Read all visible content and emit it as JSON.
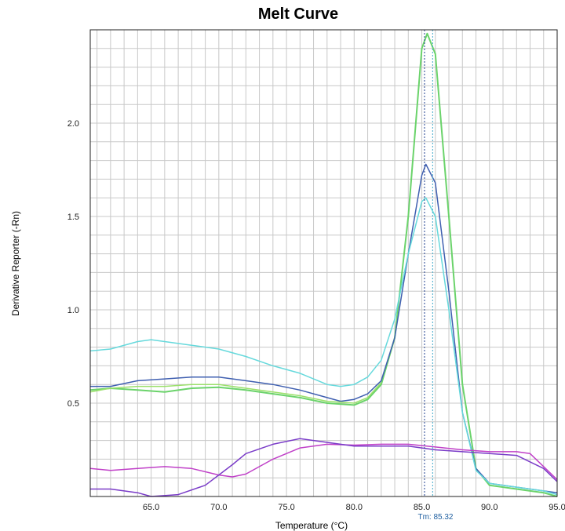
{
  "chart_data": {
    "type": "line",
    "title": "Melt Curve",
    "xlabel": "Temperature (°C)",
    "ylabel": "Derivative Reporter (-Rn)",
    "xlim": [
      60.5,
      95.0
    ],
    "ylim": [
      0.0,
      2.5
    ],
    "x_ticks": [
      "65.0",
      "70.0",
      "75.0",
      "80.0",
      "85.0",
      "90.0",
      "95.0"
    ],
    "y_ticks": [
      "0.5",
      "1.0",
      "1.5",
      "2.0"
    ],
    "grid": true,
    "tm_marker": {
      "label": "Tm: 85.32",
      "x": 85.2,
      "x2": 85.8
    },
    "series": [
      {
        "color": "#6bd36b",
        "points": [
          [
            60.5,
            0.57
          ],
          [
            62,
            0.58
          ],
          [
            64,
            0.57
          ],
          [
            66,
            0.56
          ],
          [
            68,
            0.58
          ],
          [
            70,
            0.585
          ],
          [
            72,
            0.57
          ],
          [
            74,
            0.55
          ],
          [
            76,
            0.53
          ],
          [
            78,
            0.5
          ],
          [
            80,
            0.49
          ],
          [
            81,
            0.52
          ],
          [
            82,
            0.6
          ],
          [
            83,
            0.85
          ],
          [
            84,
            1.5
          ],
          [
            85,
            2.4
          ],
          [
            85.4,
            2.48
          ],
          [
            86,
            2.37
          ],
          [
            87,
            1.5
          ],
          [
            88,
            0.6
          ],
          [
            89,
            0.15
          ],
          [
            90,
            0.06
          ],
          [
            92,
            0.04
          ],
          [
            94,
            0.02
          ],
          [
            95,
            0.0
          ]
        ]
      },
      {
        "color": "#3f5fb0",
        "points": [
          [
            60.5,
            0.59
          ],
          [
            62,
            0.59
          ],
          [
            64,
            0.62
          ],
          [
            66,
            0.63
          ],
          [
            68,
            0.64
          ],
          [
            70,
            0.64
          ],
          [
            72,
            0.62
          ],
          [
            74,
            0.6
          ],
          [
            76,
            0.57
          ],
          [
            78,
            0.53
          ],
          [
            79,
            0.51
          ],
          [
            80,
            0.52
          ],
          [
            81,
            0.55
          ],
          [
            82,
            0.62
          ],
          [
            83,
            0.85
          ],
          [
            84,
            1.3
          ],
          [
            85,
            1.72
          ],
          [
            85.3,
            1.78
          ],
          [
            86,
            1.68
          ],
          [
            87,
            1.1
          ],
          [
            88,
            0.45
          ],
          [
            89,
            0.15
          ],
          [
            90,
            0.07
          ],
          [
            92,
            0.05
          ],
          [
            94,
            0.03
          ],
          [
            95,
            0.02
          ]
        ]
      },
      {
        "color": "#9be06b",
        "points": [
          [
            60.5,
            0.56
          ],
          [
            62,
            0.58
          ],
          [
            64,
            0.59
          ],
          [
            66,
            0.59
          ],
          [
            68,
            0.6
          ],
          [
            70,
            0.6
          ],
          [
            72,
            0.58
          ],
          [
            74,
            0.56
          ],
          [
            76,
            0.54
          ],
          [
            78,
            0.51
          ],
          [
            80,
            0.5
          ],
          [
            81,
            0.53
          ],
          [
            82,
            0.61
          ]
        ]
      },
      {
        "color": "#66d9dc",
        "points": [
          [
            60.5,
            0.78
          ],
          [
            62,
            0.79
          ],
          [
            64,
            0.83
          ],
          [
            65,
            0.84
          ],
          [
            66,
            0.83
          ],
          [
            68,
            0.81
          ],
          [
            70,
            0.79
          ],
          [
            72,
            0.75
          ],
          [
            74,
            0.7
          ],
          [
            76,
            0.66
          ],
          [
            78,
            0.6
          ],
          [
            79,
            0.59
          ],
          [
            80,
            0.6
          ],
          [
            81,
            0.64
          ],
          [
            82,
            0.73
          ],
          [
            83,
            0.95
          ],
          [
            84,
            1.3
          ],
          [
            85,
            1.58
          ],
          [
            85.3,
            1.6
          ],
          [
            86,
            1.5
          ],
          [
            87,
            1.0
          ],
          [
            88,
            0.45
          ],
          [
            89,
            0.14
          ],
          [
            90,
            0.07
          ],
          [
            92,
            0.05
          ],
          [
            94,
            0.03
          ],
          [
            95,
            0.01
          ]
        ]
      },
      {
        "color": "#c040c8",
        "points": [
          [
            60.5,
            0.15
          ],
          [
            62,
            0.14
          ],
          [
            64,
            0.15
          ],
          [
            66,
            0.16
          ],
          [
            68,
            0.15
          ],
          [
            70,
            0.115
          ],
          [
            71,
            0.105
          ],
          [
            72,
            0.12
          ],
          [
            74,
            0.2
          ],
          [
            76,
            0.26
          ],
          [
            78,
            0.28
          ],
          [
            80,
            0.275
          ],
          [
            82,
            0.28
          ],
          [
            84,
            0.28
          ],
          [
            86,
            0.265
          ],
          [
            88,
            0.25
          ],
          [
            90,
            0.24
          ],
          [
            92,
            0.24
          ],
          [
            93,
            0.23
          ],
          [
            94,
            0.16
          ],
          [
            95,
            0.09
          ]
        ]
      },
      {
        "color": "#7a3cc8",
        "points": [
          [
            60.5,
            0.04
          ],
          [
            62,
            0.04
          ],
          [
            64,
            0.02
          ],
          [
            65,
            0.0
          ],
          [
            67,
            0.01
          ],
          [
            69,
            0.06
          ],
          [
            71,
            0.17
          ],
          [
            72,
            0.23
          ],
          [
            74,
            0.28
          ],
          [
            76,
            0.31
          ],
          [
            78,
            0.29
          ],
          [
            80,
            0.27
          ],
          [
            82,
            0.27
          ],
          [
            84,
            0.27
          ],
          [
            86,
            0.25
          ],
          [
            88,
            0.24
          ],
          [
            90,
            0.23
          ],
          [
            92,
            0.22
          ],
          [
            94,
            0.15
          ],
          [
            95,
            0.08
          ]
        ]
      }
    ]
  }
}
